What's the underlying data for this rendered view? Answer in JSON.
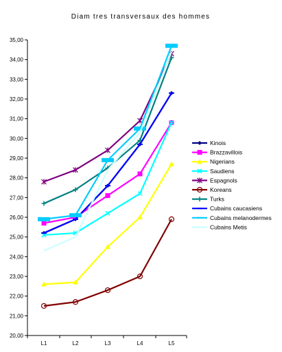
{
  "chart_data": {
    "type": "line",
    "title": "Diam  tres transversaux des  hommes",
    "xlabel": "",
    "ylabel": "",
    "categories": [
      "L1",
      "L2",
      "L3",
      "L4",
      "L5"
    ],
    "ylim": [
      20,
      35
    ],
    "yticks": [
      "20,00",
      "21,00",
      "22,00",
      "23,00",
      "24,00",
      "25,00",
      "26,00",
      "27,00",
      "28,00",
      "29,00",
      "30,00",
      "31,00",
      "32,00",
      "33,00",
      "34,00",
      "35,00"
    ],
    "grid": false,
    "legend_position": "right",
    "series": [
      {
        "name": "Kinois",
        "color": "#000080",
        "marker": "diamond",
        "values": [
          25.2,
          25.9,
          27.6,
          29.7,
          32.3
        ]
      },
      {
        "name": "Brazzavillois",
        "color": "#ff00ff",
        "marker": "square",
        "values": [
          25.7,
          26.0,
          27.1,
          28.2,
          30.8
        ]
      },
      {
        "name": "Nigerians",
        "color": "#ffff00",
        "marker": "triangle",
        "values": [
          22.6,
          22.7,
          24.5,
          26.0,
          28.7
        ]
      },
      {
        "name": "Saudiens",
        "color": "#00ffff",
        "marker": "x",
        "values": [
          25.1,
          25.2,
          26.2,
          27.2,
          30.8
        ]
      },
      {
        "name": "Espagnols",
        "color": "#800080",
        "marker": "star",
        "values": [
          27.8,
          28.4,
          29.4,
          30.9,
          34.3
        ]
      },
      {
        "name": "Koreans",
        "color": "#800000",
        "marker": "circle",
        "values": [
          21.5,
          21.7,
          22.3,
          23.0,
          25.9
        ]
      },
      {
        "name": "Turks",
        "color": "#008080",
        "marker": "plus",
        "values": [
          26.7,
          27.4,
          28.5,
          29.9,
          34.1
        ]
      },
      {
        "name": "Cubains caucasiens",
        "color": "#0000ff",
        "marker": "dash",
        "values": [
          25.2,
          25.9,
          27.6,
          29.7,
          32.3
        ]
      },
      {
        "name": "Cubains melanodermes",
        "color": "#00ccff",
        "marker": "bar",
        "values": [
          25.9,
          26.1,
          28.9,
          30.5,
          34.7
        ]
      },
      {
        "name": "Cubains Metis",
        "color": "#ccffff",
        "marker": "none",
        "values": [
          24.3,
          25.0,
          28.4,
          30.3,
          34.4
        ]
      }
    ]
  }
}
